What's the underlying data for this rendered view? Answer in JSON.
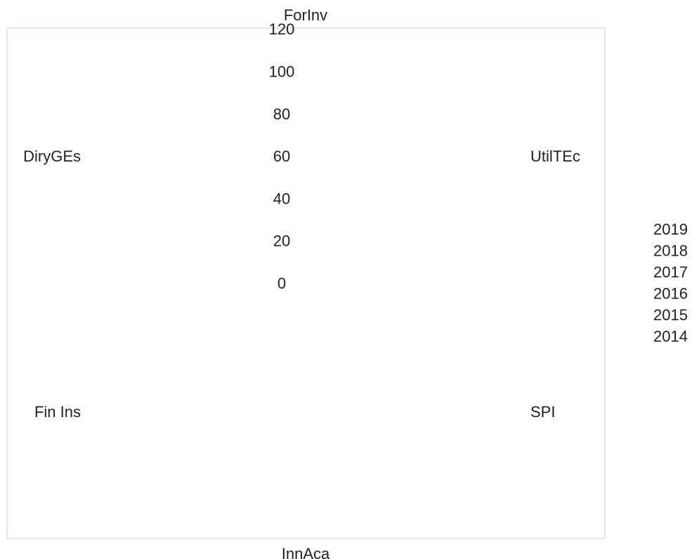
{
  "chart_data": {
    "type": "radar",
    "axes": [
      "ForInv",
      "UtilTEc",
      "SPI",
      "InnAca",
      "Fin Ins",
      "DiryGEs"
    ],
    "r_ticks": [
      0,
      20,
      40,
      60,
      80,
      100,
      120
    ],
    "r_range": [
      0,
      120
    ],
    "legend_entries": [
      "2019",
      "2018",
      "2017",
      "2016",
      "2015",
      "2014"
    ],
    "legend_position": "right",
    "grid": false
  }
}
